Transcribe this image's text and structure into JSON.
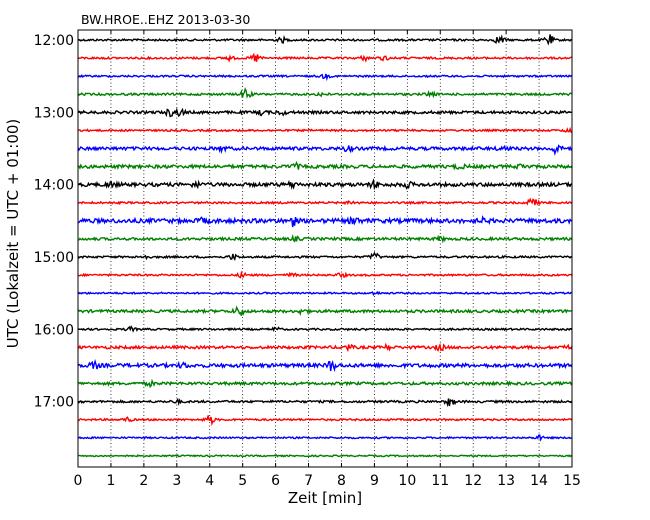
{
  "chart_data": {
    "type": "line",
    "title": "BW.HROE..EHZ 2013-03-30",
    "xlabel": "Zeit  [min]",
    "ylabel": "UTC (Lokalzeit = UTC + 01:00)",
    "xlim": [
      0,
      15
    ],
    "x_ticks": [
      "0",
      "1",
      "2",
      "3",
      "4",
      "5",
      "6",
      "7",
      "8",
      "9",
      "10",
      "11",
      "12",
      "13",
      "14",
      "15"
    ],
    "y_ticks": [
      "12:00",
      "13:00",
      "14:00",
      "15:00",
      "16:00",
      "17:00"
    ],
    "grid": "vertical dotted at each minute",
    "colors": [
      "#000000",
      "#ff0000",
      "#0000ff",
      "#008000"
    ],
    "series": [
      {
        "start": "12:00",
        "color": "#000000",
        "amplitude": 0.3,
        "bursts": [
          {
            "t": 6.2,
            "a": 0.7
          },
          {
            "t": 12.8,
            "a": 1.3
          },
          {
            "t": 14.3,
            "a": 1.6
          }
        ]
      },
      {
        "start": "12:15",
        "color": "#ff0000",
        "amplitude": 0.3,
        "bursts": [
          {
            "t": 4.6,
            "a": 0.6
          },
          {
            "t": 5.4,
            "a": 1.4
          },
          {
            "t": 8.7,
            "a": 0.6
          },
          {
            "t": 9.3,
            "a": 0.6
          }
        ]
      },
      {
        "start": "12:30",
        "color": "#0000ff",
        "amplitude": 0.28,
        "bursts": [
          {
            "t": 7.5,
            "a": 0.6
          }
        ]
      },
      {
        "start": "12:45",
        "color": "#008000",
        "amplitude": 0.33,
        "bursts": [
          {
            "t": 5.1,
            "a": 1.8
          },
          {
            "t": 7.4,
            "a": 0.5
          },
          {
            "t": 10.7,
            "a": 0.6
          }
        ]
      },
      {
        "start": "13:00",
        "color": "#000000",
        "amplitude": 0.42,
        "bursts": [
          {
            "t": 2.8,
            "a": 1.0
          },
          {
            "t": 3.1,
            "a": 0.9
          },
          {
            "t": 5.6,
            "a": 0.7
          },
          {
            "t": 6.2,
            "a": 0.6
          }
        ]
      },
      {
        "start": "13:15",
        "color": "#ff0000",
        "amplitude": 0.28,
        "bursts": [
          {
            "t": 14.9,
            "a": 0.6
          }
        ]
      },
      {
        "start": "13:30",
        "color": "#0000ff",
        "amplitude": 0.48,
        "bursts": [
          {
            "t": 4.4,
            "a": 0.6
          },
          {
            "t": 8.2,
            "a": 0.7
          },
          {
            "t": 12.9,
            "a": 0.7
          },
          {
            "t": 14.5,
            "a": 1.5
          }
        ]
      },
      {
        "start": "13:45",
        "color": "#008000",
        "amplitude": 0.5,
        "bursts": [
          {
            "t": 6.6,
            "a": 0.8
          },
          {
            "t": 11.6,
            "a": 0.6
          },
          {
            "t": 13.5,
            "a": 0.7
          }
        ]
      },
      {
        "start": "14:00",
        "color": "#000000",
        "amplitude": 0.55,
        "bursts": [
          {
            "t": 1.0,
            "a": 0.7
          },
          {
            "t": 3.6,
            "a": 0.6
          },
          {
            "t": 6.5,
            "a": 0.7
          },
          {
            "t": 9.0,
            "a": 0.8
          },
          {
            "t": 10.0,
            "a": 0.7
          }
        ]
      },
      {
        "start": "14:15",
        "color": "#ff0000",
        "amplitude": 0.3,
        "bursts": [
          {
            "t": 8.3,
            "a": 0.5
          },
          {
            "t": 13.8,
            "a": 1.5
          }
        ]
      },
      {
        "start": "14:30",
        "color": "#0000ff",
        "amplitude": 0.65,
        "bursts": [
          {
            "t": 3.8,
            "a": 0.6
          },
          {
            "t": 6.5,
            "a": 1.4
          },
          {
            "t": 8.4,
            "a": 1.0
          },
          {
            "t": 12.3,
            "a": 0.5
          }
        ]
      },
      {
        "start": "14:45",
        "color": "#008000",
        "amplitude": 0.4,
        "bursts": [
          {
            "t": 6.6,
            "a": 0.5
          },
          {
            "t": 11.0,
            "a": 0.5
          }
        ]
      },
      {
        "start": "15:00",
        "color": "#000000",
        "amplitude": 0.3,
        "bursts": [
          {
            "t": 2.0,
            "a": 0.5
          },
          {
            "t": 4.7,
            "a": 0.8
          },
          {
            "t": 9.0,
            "a": 1.2
          }
        ]
      },
      {
        "start": "15:15",
        "color": "#ff0000",
        "amplitude": 0.28,
        "bursts": [
          {
            "t": 5.0,
            "a": 0.7
          },
          {
            "t": 6.5,
            "a": 0.5
          },
          {
            "t": 8.0,
            "a": 0.6
          }
        ]
      },
      {
        "start": "15:30",
        "color": "#0000ff",
        "amplitude": 0.25,
        "bursts": [
          {
            "t": 9.0,
            "a": 0.4
          }
        ]
      },
      {
        "start": "15:45",
        "color": "#008000",
        "amplitude": 0.42,
        "bursts": [
          {
            "t": 4.9,
            "a": 1.5
          },
          {
            "t": 6.8,
            "a": 0.6
          }
        ]
      },
      {
        "start": "16:00",
        "color": "#000000",
        "amplitude": 0.28,
        "bursts": [
          {
            "t": 1.6,
            "a": 0.6
          },
          {
            "t": 6.0,
            "a": 0.5
          }
        ]
      },
      {
        "start": "16:15",
        "color": "#ff0000",
        "amplitude": 0.42,
        "bursts": [
          {
            "t": 8.2,
            "a": 0.7
          },
          {
            "t": 9.4,
            "a": 0.6
          },
          {
            "t": 11.0,
            "a": 0.8
          },
          {
            "t": 14.8,
            "a": 0.6
          }
        ]
      },
      {
        "start": "16:30",
        "color": "#0000ff",
        "amplitude": 0.55,
        "bursts": [
          {
            "t": 0.5,
            "a": 0.9
          },
          {
            "t": 3.2,
            "a": 0.6
          },
          {
            "t": 7.7,
            "a": 1.5
          }
        ]
      },
      {
        "start": "16:45",
        "color": "#008000",
        "amplitude": 0.42,
        "bursts": [
          {
            "t": 2.2,
            "a": 0.6
          }
        ]
      },
      {
        "start": "17:00",
        "color": "#000000",
        "amplitude": 0.33,
        "bursts": [
          {
            "t": 3.0,
            "a": 0.4
          },
          {
            "t": 11.3,
            "a": 1.2
          }
        ]
      },
      {
        "start": "17:15",
        "color": "#ff0000",
        "amplitude": 0.28,
        "bursts": [
          {
            "t": 1.5,
            "a": 0.6
          },
          {
            "t": 4.0,
            "a": 1.4
          }
        ]
      },
      {
        "start": "17:30",
        "color": "#0000ff",
        "amplitude": 0.25,
        "bursts": [
          {
            "t": 14.0,
            "a": 0.6
          }
        ]
      },
      {
        "start": "17:45",
        "color": "#008000",
        "amplitude": 0.22,
        "bursts": []
      }
    ]
  }
}
